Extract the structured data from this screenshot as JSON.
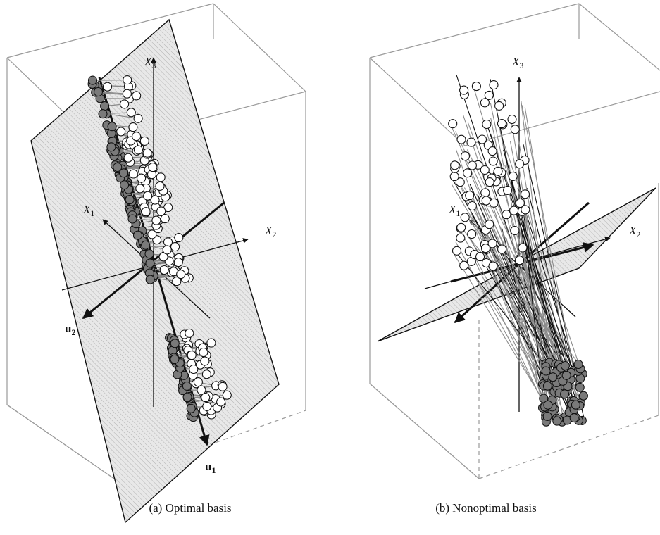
{
  "panels": [
    {
      "caption": "(a) Optimal basis",
      "axes": {
        "x1": "X",
        "x1_sub": "1",
        "x2": "X",
        "x2_sub": "2",
        "x3": "X",
        "x3_sub": "3"
      },
      "basis": {
        "u1": "u",
        "u1_sub": "1",
        "u2": "u",
        "u2_sub": "2"
      }
    },
    {
      "caption": "(b) Nonoptimal basis",
      "axes": {
        "x1": "X",
        "x1_sub": "1",
        "x2": "X",
        "x2_sub": "2",
        "x3": "X",
        "x3_sub": "3"
      }
    }
  ],
  "colors": {
    "box_edge": "#9a9a9a",
    "plane_fill": "#e6e6e6",
    "hatch": "#b5b5b5",
    "point_filled": "#7a7a7a",
    "point_open": "#ffffff",
    "outline": "#111111",
    "projection_line_b": "#8c8c8c"
  }
}
